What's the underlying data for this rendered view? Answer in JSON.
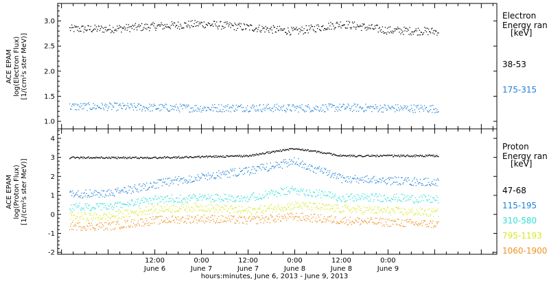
{
  "chart_data": [
    {
      "type": "scatter",
      "ylabel": [
        "ACE EPAM",
        "log(Electron Flux)",
        "[1/(cm²s ster MeV)]"
      ],
      "yticks": [
        "1.0",
        "1.5",
        "2.0",
        "2.5",
        "3.0"
      ],
      "ylim": [
        0.85,
        3.35
      ],
      "legend_title": [
        "Electron",
        "Energy ran",
        "[keV]"
      ],
      "series": [
        {
          "name": "38-53",
          "color": "#000000",
          "x": [
            0,
            12,
            24,
            36,
            48,
            60,
            72,
            84
          ],
          "y": [
            2.85,
            2.9,
            2.95,
            2.88,
            2.8,
            2.95,
            2.82,
            2.8
          ]
        },
        {
          "name": "175-315",
          "color": "#1e7fd8",
          "x": [
            0,
            12,
            24,
            36,
            48,
            60,
            72,
            84
          ],
          "y": [
            1.3,
            1.28,
            1.27,
            1.28,
            1.27,
            1.28,
            1.27,
            1.26
          ]
        }
      ]
    },
    {
      "type": "scatter",
      "ylabel": [
        "ACE EPAM",
        "log(Proton Flux)",
        "[1/(cm²s ster MeV)]"
      ],
      "yticks": [
        "-2",
        "-1",
        "0",
        "1",
        "2",
        "3",
        "4"
      ],
      "ylim": [
        -2.1,
        4.5
      ],
      "legend_title": [
        "Proton",
        "Energy ran",
        "[keV]"
      ],
      "series": [
        {
          "name": "47-68",
          "color": "#000000",
          "x": [
            0,
            12,
            24,
            36,
            48,
            60,
            72,
            84
          ],
          "y": [
            3.0,
            3.0,
            3.05,
            3.1,
            3.5,
            3.1,
            3.1,
            3.1
          ]
        },
        {
          "name": "115-195",
          "color": "#1e7fd8",
          "x": [
            0,
            12,
            24,
            36,
            48,
            60,
            72,
            84
          ],
          "y": [
            1.1,
            1.6,
            2.0,
            2.3,
            2.8,
            1.9,
            1.8,
            1.7
          ]
        },
        {
          "name": "310-580",
          "color": "#2ee0d8",
          "x": [
            0,
            12,
            24,
            36,
            48,
            60,
            72,
            84
          ],
          "y": [
            0.4,
            0.8,
            0.9,
            0.9,
            1.3,
            0.9,
            0.9,
            0.8
          ]
        },
        {
          "name": "795-1193",
          "color": "#d8e81e",
          "x": [
            0,
            12,
            24,
            36,
            48,
            60,
            72,
            84
          ],
          "y": [
            -0.1,
            0.3,
            0.4,
            0.2,
            0.5,
            0.3,
            0.2,
            0.1
          ]
        },
        {
          "name": "1060-1900",
          "color": "#f0901e",
          "x": [
            0,
            12,
            24,
            36,
            48,
            60,
            72,
            84
          ],
          "y": [
            -0.6,
            -0.3,
            -0.2,
            -0.3,
            -0.1,
            -0.3,
            -0.4,
            -0.5
          ]
        }
      ]
    }
  ],
  "x_axis": {
    "label": "hours:minutes, June  6, 2013 - June  9, 2013",
    "ticks": [
      {
        "time": "12:00",
        "day": "June 6"
      },
      {
        "time": "0:00",
        "day": "June 7"
      },
      {
        "time": "12:00",
        "day": "June 7"
      },
      {
        "time": "0:00",
        "day": "June 8"
      },
      {
        "time": "12:00",
        "day": "June 8"
      },
      {
        "time": "0:00",
        "day": "June 9"
      }
    ]
  }
}
